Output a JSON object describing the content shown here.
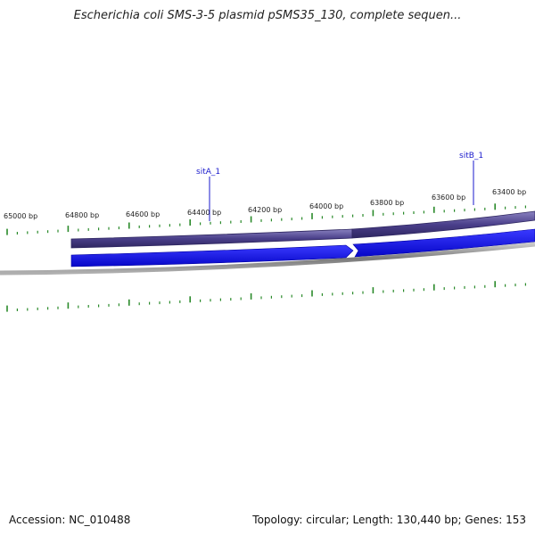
{
  "title": "Escherichia coli SMS-3-5 plasmid pSMS35_130, complete sequen...",
  "footer": {
    "accession": "Accession: NC_010488",
    "summary": "Topology: circular; Length: 130,440 bp; Genes: 153"
  },
  "ruler": {
    "labels": [
      "65000 bp",
      "64800 bp",
      "64600 bp",
      "64400 bp",
      "64200 bp",
      "64000 bp",
      "63800 bp",
      "63600 bp",
      "63400 bp"
    ]
  },
  "genes": [
    {
      "name": "sitA_1"
    },
    {
      "name": "sitB_1"
    }
  ],
  "colors": {
    "gene_feature": "#1010e0",
    "outer_track": "#4a3f8a",
    "ticks": "#2a8a2a",
    "backbone": "#808080",
    "gene_label": "#1a1acc"
  }
}
